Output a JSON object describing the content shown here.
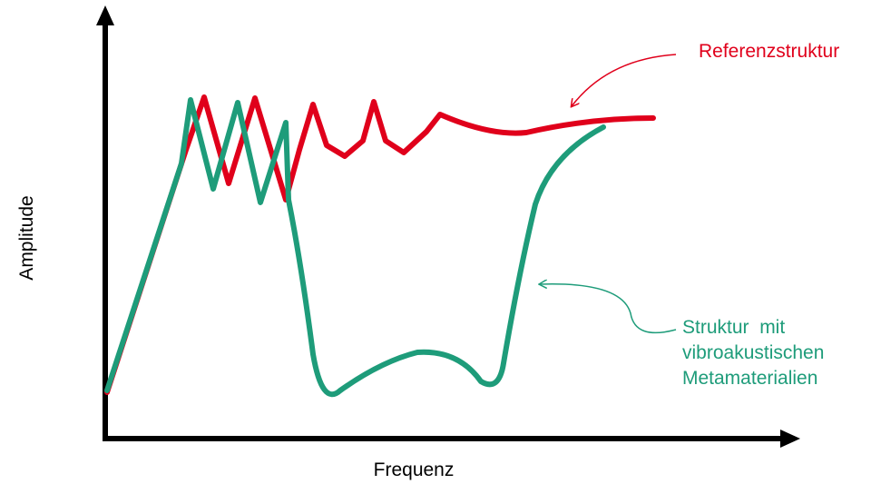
{
  "axes": {
    "x_label": "Frequenz",
    "y_label": "Amplitude"
  },
  "annotations": [
    {
      "lines": [
        "Referenzstruktur"
      ]
    },
    {
      "lines": [
        "Struktur  mit",
        "vibroakustischen",
        "Metamaterialien"
      ]
    }
  ]
}
